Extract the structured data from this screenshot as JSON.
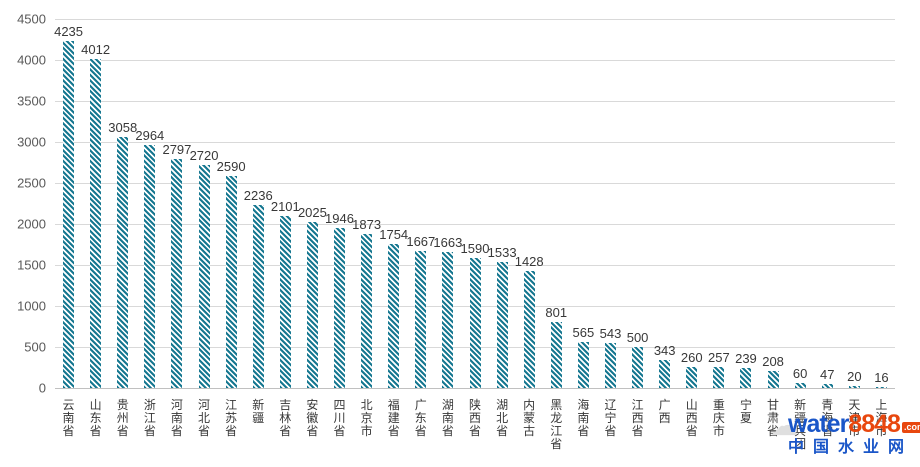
{
  "chart_data": {
    "type": "bar",
    "title": "",
    "xlabel": "",
    "ylabel": "",
    "categories": [
      "云南省",
      "山东省",
      "贵州省",
      "浙江省",
      "河南省",
      "河北省",
      "江苏省",
      "新疆",
      "吉林省",
      "安徽省",
      "四川省",
      "北京市",
      "福建省",
      "广东省",
      "湖南省",
      "陕西省",
      "湖北省",
      "内蒙古",
      "黑龙江省",
      "海南省",
      "辽宁省",
      "江西省",
      "广西",
      "山西省",
      "重庆市",
      "宁夏",
      "甘肃省",
      "新疆兵团",
      "青海省",
      "天津市",
      "上海市"
    ],
    "values": [
      4235,
      4012,
      3058,
      2964,
      2797,
      2720,
      2590,
      2236,
      2101,
      2025,
      1946,
      1873,
      1754,
      1667,
      1663,
      1590,
      1533,
      1428,
      801,
      565,
      543,
      500,
      343,
      260,
      257,
      239,
      208,
      60,
      47,
      20,
      16
    ],
    "ylim": [
      0,
      4500
    ],
    "yticks": [
      0,
      500,
      1000,
      1500,
      2000,
      2500,
      3000,
      3500,
      4000,
      4500
    ],
    "grid": true,
    "legend": false,
    "bar_color": "#177891",
    "bar_pattern": "downward-diagonal-stripes",
    "gridline_color": "#d9d9d9",
    "axis_text_color": "#595959",
    "value_label_color": "#383838"
  },
  "watermark": {
    "site": "water",
    "number": "8848",
    "tld": ".com",
    "cn_name": "中国水业网",
    "blue": "#1a56c8",
    "red": "#e8470e"
  }
}
